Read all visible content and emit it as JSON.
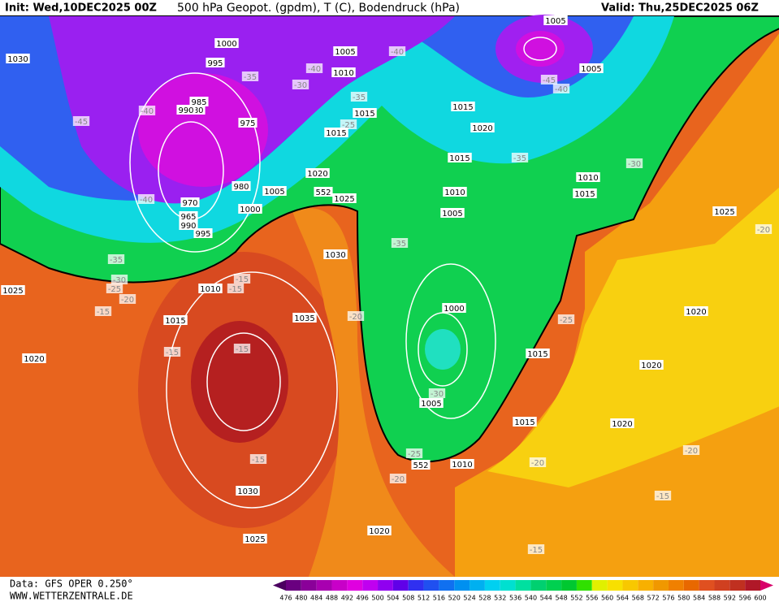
{
  "header": {
    "init": "Init: Wed,10DEC2025 00Z",
    "title": "500 hPa Geopot. (gpdm), T (C), Bodendruck (hPa)",
    "valid": "Valid: Thu,25DEC2025 06Z"
  },
  "footer": {
    "source": "Data: GFS OPER 0.250°",
    "website": "WWW.WETTERZENTRALE.DE"
  },
  "colorbar": {
    "labels": [
      476,
      480,
      484,
      488,
      492,
      496,
      500,
      504,
      508,
      512,
      516,
      520,
      524,
      528,
      532,
      536,
      540,
      544,
      548,
      552,
      556,
      560,
      564,
      568,
      572,
      576,
      580,
      584,
      588,
      592,
      596,
      600
    ],
    "colors": [
      "#4b0060",
      "#6a0080",
      "#8a0099",
      "#a800b0",
      "#c800c8",
      "#e000e0",
      "#c000f0",
      "#9000f0",
      "#6000e8",
      "#3030f0",
      "#2050f0",
      "#1070f0",
      "#0090f0",
      "#00b0f0",
      "#00d0f0",
      "#00e0d0",
      "#00e0a0",
      "#00d070",
      "#00d050",
      "#00c830",
      "#30e000",
      "#e0f000",
      "#f8e000",
      "#f8c800",
      "#f8b000",
      "#f09800",
      "#f08000",
      "#e86800",
      "#e05020",
      "#d04020",
      "#c03020",
      "#b01828",
      "#d8006a"
    ]
  },
  "isobar_labels": [
    1030,
    1000,
    995,
    1005,
    1010,
    985,
    980,
    990,
    975,
    1015,
    1015,
    1020,
    980,
    1005,
    1025,
    970,
    965,
    990,
    995,
    1000,
    1010,
    1030,
    1015,
    1020,
    1035,
    1030,
    1025,
    1020,
    1010,
    1015,
    1020,
    1005,
    1000,
    1015,
    1020,
    1020,
    1025,
    1015,
    1010,
    1015,
    1020,
    1015,
    1010,
    1005,
    1005,
    1005,
    1025
  ],
  "temperature_labels": [
    -45,
    -40,
    -40,
    -35,
    -30,
    -25,
    -20,
    -15,
    -15,
    -15,
    -15,
    -15,
    -15,
    -20,
    -35,
    -40,
    -30,
    -35,
    -25,
    -40,
    -45,
    -40,
    -35,
    -30,
    -35,
    -30,
    -25,
    -20,
    -20,
    -25,
    -20,
    -15,
    -15,
    -20
  ],
  "height_labels": [
    552,
    552
  ]
}
